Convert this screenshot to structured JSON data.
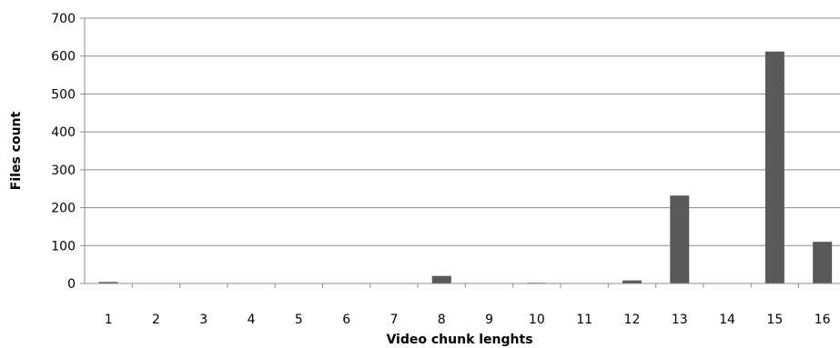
{
  "chart_data": {
    "type": "bar",
    "title": "",
    "xlabel": "Video chunk lenghts",
    "ylabel": "Files count",
    "categories": [
      "1",
      "2",
      "3",
      "4",
      "5",
      "6",
      "7",
      "8",
      "9",
      "10",
      "11",
      "12",
      "13",
      "14",
      "15",
      "16"
    ],
    "values": [
      4,
      0,
      0,
      0,
      0,
      0,
      0,
      20,
      0,
      2,
      0,
      8,
      232,
      0,
      612,
      110
    ],
    "ylim": [
      0,
      700
    ],
    "yticks": [
      "0",
      "100",
      "200",
      "300",
      "400",
      "500",
      "600",
      "700"
    ],
    "grid": true,
    "legend": "none",
    "bar_color": "#595959"
  }
}
